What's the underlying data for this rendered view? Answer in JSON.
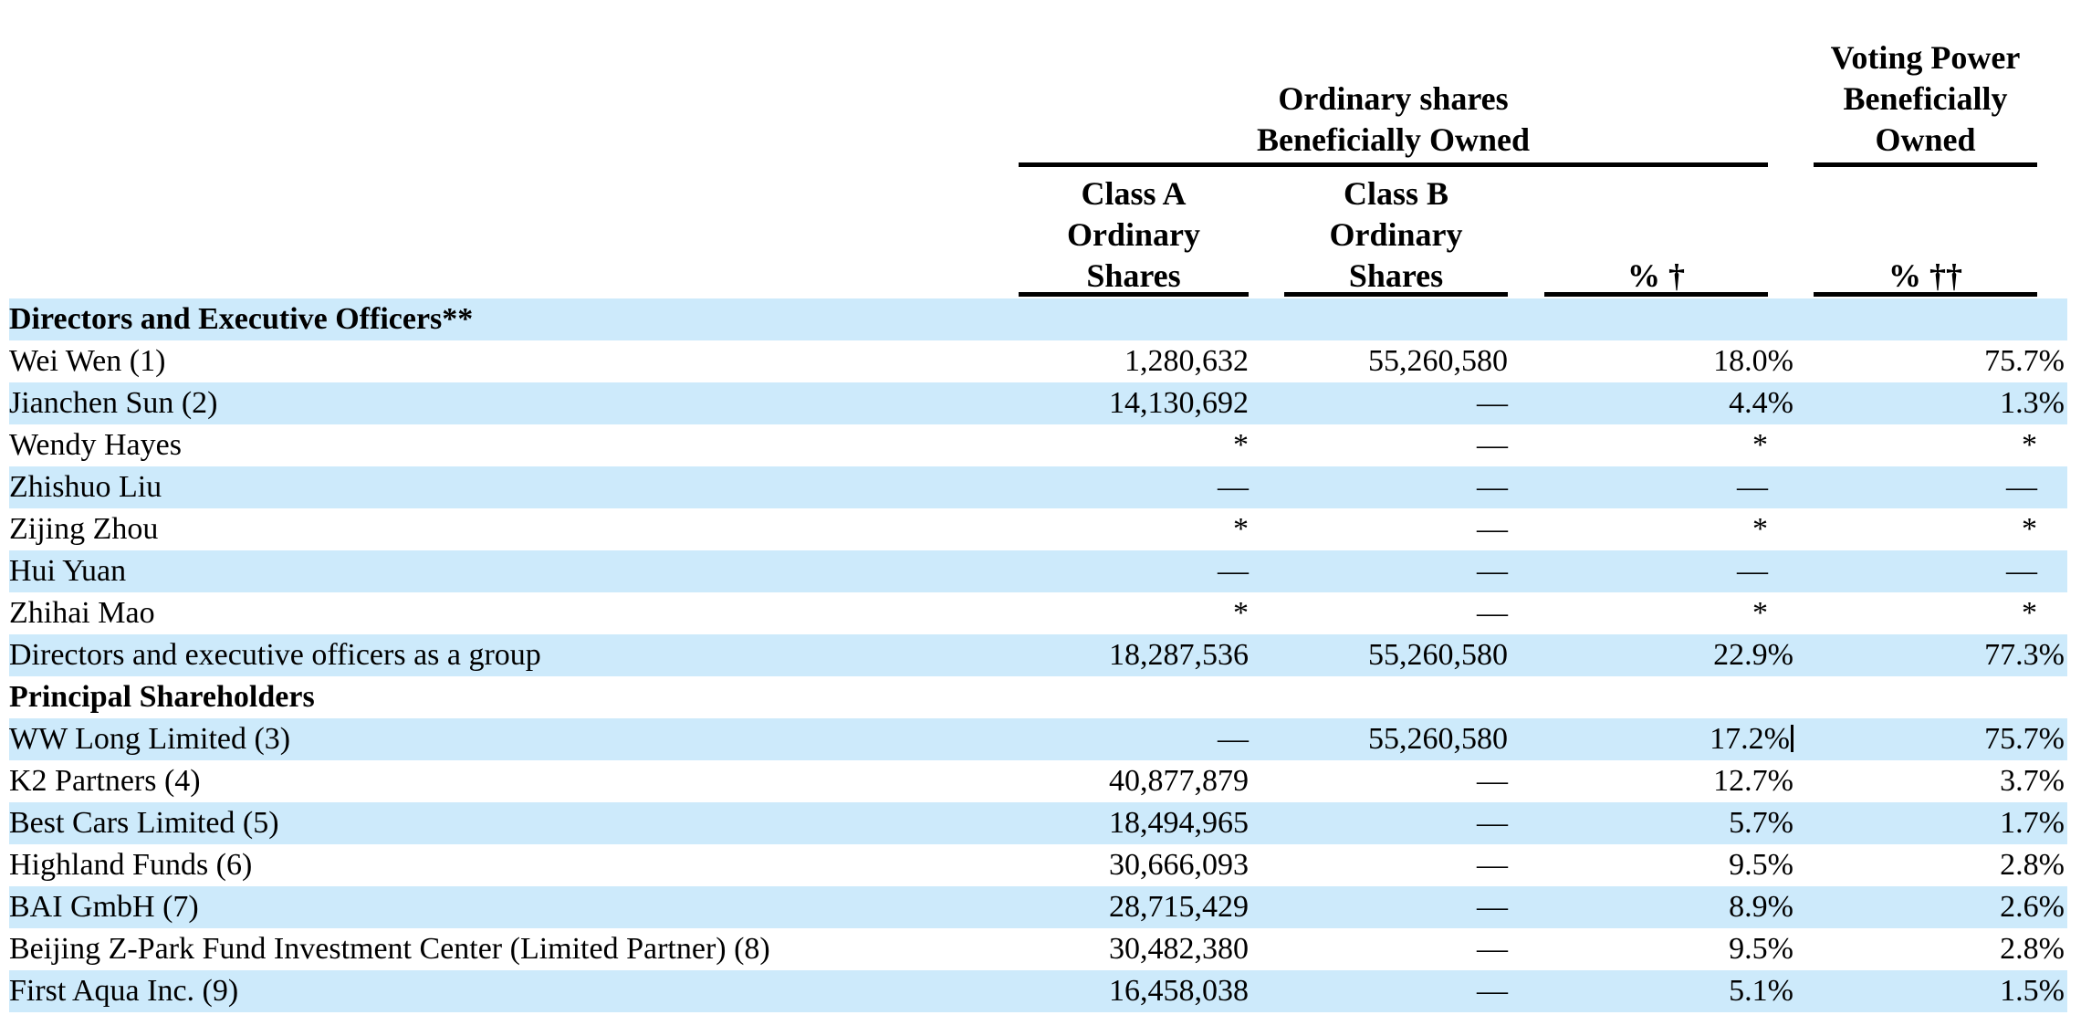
{
  "colors": {
    "stripe_blue": "#cdeafb",
    "text": "#000000",
    "rule": "#000000",
    "caret": "#000000"
  },
  "table": {
    "header": {
      "group_ordinary": {
        "line1": "Ordinary shares",
        "line2": "Beneficially Owned"
      },
      "group_voting": {
        "line1": "Voting Power",
        "line2": "Beneficially",
        "line3": "Owned"
      },
      "class_a": {
        "line1": "Class A",
        "line2": "Ordinary",
        "line3": "Shares"
      },
      "class_b": {
        "line1": "Class B",
        "line2": "Ordinary",
        "line3": "Shares"
      },
      "pct_dagger": "% †",
      "pct_double_dagger": "% ††"
    },
    "rows": [
      {
        "label": "Directors and Executive Officers**",
        "type": "section",
        "classA": "",
        "classB": "",
        "pct1": "",
        "pct2": ""
      },
      {
        "label": "Wei Wen (1)",
        "classA": "1,280,632",
        "classB": "55,260,580",
        "pct1": "18.0%",
        "pct2": "75.7%"
      },
      {
        "label": "Jianchen Sun (2)",
        "classA": "14,130,692",
        "classB": "—",
        "pct1": "4.4%",
        "pct2": "1.3%"
      },
      {
        "label": "Wendy Hayes",
        "classA": "*",
        "classB": "—",
        "pct1": "*",
        "pct2": "*"
      },
      {
        "label": "Zhishuo Liu",
        "classA": "—",
        "classB": "—",
        "pct1": "—",
        "pct2": "—"
      },
      {
        "label": "Zijing Zhou",
        "classA": "*",
        "classB": "—",
        "pct1": "*",
        "pct2": "*"
      },
      {
        "label": "Hui Yuan",
        "classA": "—",
        "classB": "—",
        "pct1": "—",
        "pct2": "—"
      },
      {
        "label": "Zhihai Mao",
        "classA": "*",
        "classB": "—",
        "pct1": "*",
        "pct2": "*"
      },
      {
        "label": "Directors and executive officers as a group",
        "classA": "18,287,536",
        "classB": "55,260,580",
        "pct1": "22.9%",
        "pct2": "77.3%"
      },
      {
        "label": "Principal Shareholders",
        "type": "section",
        "classA": "",
        "classB": "",
        "pct1": "",
        "pct2": ""
      },
      {
        "label": "WW Long Limited (3)",
        "classA": "—",
        "classB": "55,260,580",
        "pct1": "17.2%",
        "pct2": "75.7%",
        "caret": true
      },
      {
        "label": "K2 Partners (4)",
        "classA": "40,877,879",
        "classB": "—",
        "pct1": "12.7%",
        "pct2": "3.7%"
      },
      {
        "label": "Best Cars Limited (5)",
        "classA": "18,494,965",
        "classB": "—",
        "pct1": "5.7%",
        "pct2": "1.7%"
      },
      {
        "label": "Highland Funds (6)",
        "classA": "30,666,093",
        "classB": "—",
        "pct1": "9.5%",
        "pct2": "2.8%"
      },
      {
        "label": "BAI GmbH (7)",
        "classA": "28,715,429",
        "classB": "—",
        "pct1": "8.9%",
        "pct2": "2.6%"
      },
      {
        "label": "Beijing Z-Park Fund Investment Center (Limited Partner) (8)",
        "classA": "30,482,380",
        "classB": "—",
        "pct1": "9.5%",
        "pct2": "2.8%"
      },
      {
        "label": "First Aqua Inc. (9)",
        "classA": "16,458,038",
        "classB": "—",
        "pct1": "5.1%",
        "pct2": "1.5%"
      }
    ]
  }
}
